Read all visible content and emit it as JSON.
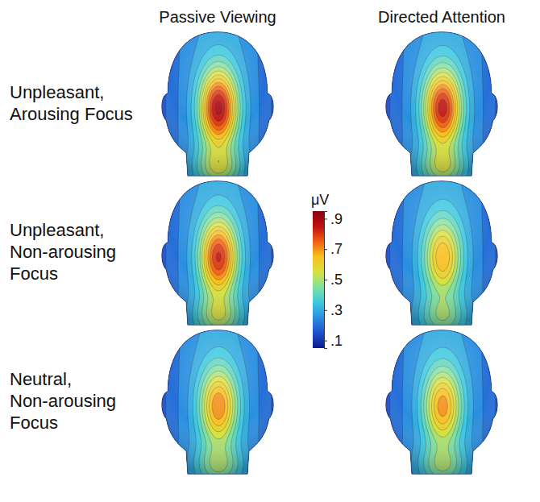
{
  "chart_data": {
    "type": "topographic_map",
    "columns": [
      "Passive Viewing",
      "Directed Attention"
    ],
    "rows": [
      "Unpleasant, Arousing Focus",
      "Unpleasant, Non-arousing Focus",
      "Neutral, Non-arousing Focus"
    ],
    "values": [
      [
        0.92,
        0.88
      ],
      [
        0.86,
        0.7
      ],
      [
        0.75,
        0.73
      ]
    ],
    "color_bar": {
      "title": "μV",
      "lim": [
        0.05,
        0.95
      ],
      "ticks": [
        {
          "value": 0.9,
          "label": ".9"
        },
        {
          "value": 0.7,
          "label": ".7"
        },
        {
          "value": 0.5,
          "label": ".5"
        },
        {
          "value": 0.3,
          "label": ".3"
        },
        {
          "value": 0.1,
          "label": ".1"
        }
      ],
      "colors": [
        "#0a1a8c",
        "#1f4fd0",
        "#2a8fe0",
        "#3cc8e0",
        "#7fe0a0",
        "#d8e040",
        "#f8c020",
        "#f06010",
        "#c01010",
        "#8a0010"
      ]
    }
  }
}
